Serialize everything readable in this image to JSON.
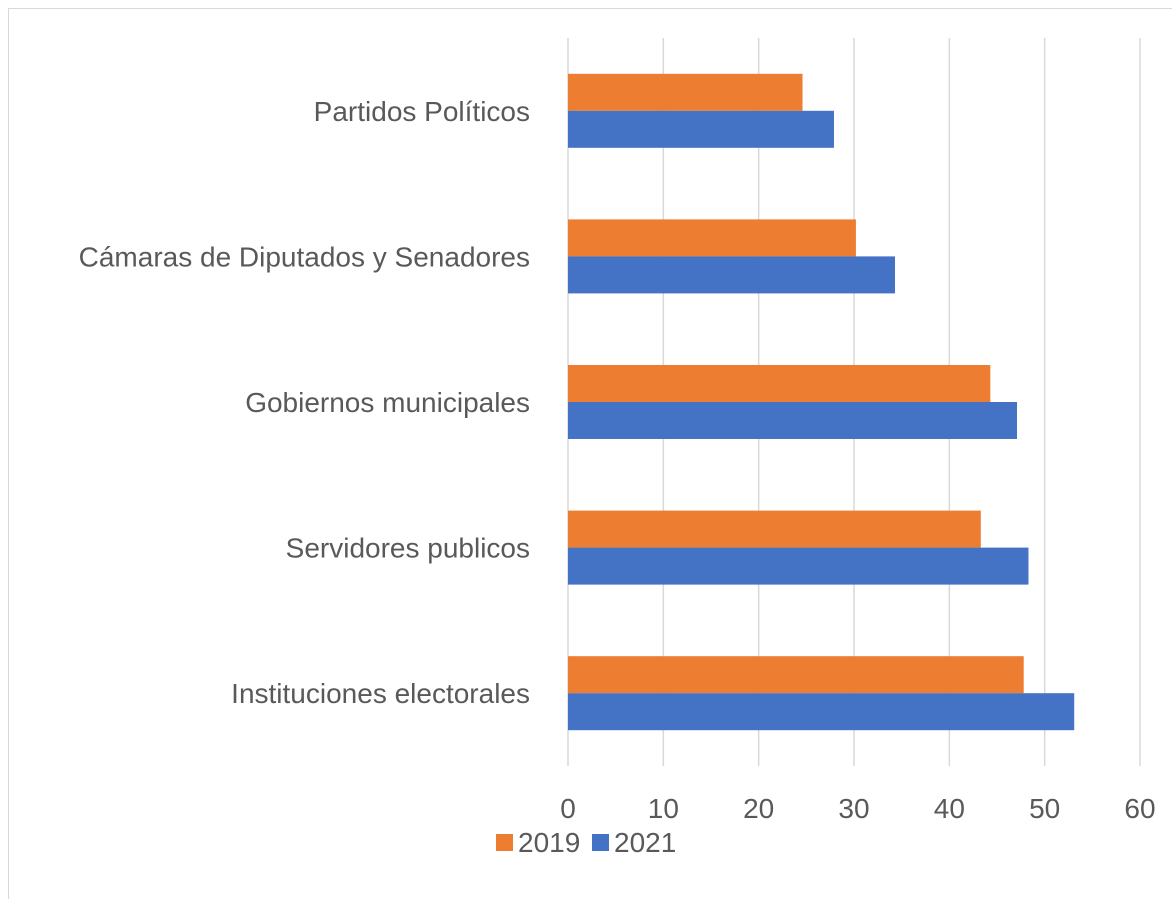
{
  "chart_data": {
    "type": "bar",
    "orientation": "horizontal",
    "categories": [
      "Partidos Políticos",
      "Cámaras de Diputados y Senadores",
      "Gobiernos municipales",
      "Servidores publicos",
      "Instituciones electorales"
    ],
    "series": [
      {
        "name": "2019",
        "color": "#ed7d31",
        "values": [
          24.6,
          30.2,
          44.3,
          43.3,
          47.8
        ]
      },
      {
        "name": "2021",
        "color": "#4472c4",
        "values": [
          27.9,
          34.3,
          47.1,
          48.3,
          53.1
        ]
      }
    ],
    "xlim": [
      0,
      60
    ],
    "xticks": [
      "0",
      "10",
      "20",
      "30",
      "40",
      "50",
      "60"
    ],
    "grid": true,
    "legend_position": "bottom",
    "title": "",
    "xlabel": "",
    "ylabel": ""
  }
}
